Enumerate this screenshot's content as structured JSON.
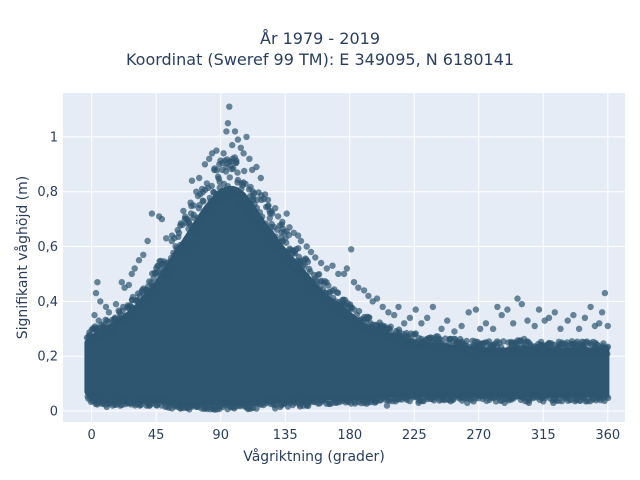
{
  "chart_data": {
    "type": "scatter",
    "title_lines": [
      "År 1979 - 2019",
      "Koordinat (Sweref 99 TM): E 349095, N 6180141"
    ],
    "xlabel": "Vågriktning (grader)",
    "ylabel": "Signifikant våghöjd (m)",
    "xlim": [
      -20,
      372
    ],
    "ylim": [
      -0.04,
      1.16
    ],
    "xticks": [
      0,
      45,
      90,
      135,
      180,
      225,
      270,
      315,
      360
    ],
    "xtick_labels": [
      "0",
      "45",
      "90",
      "135",
      "180",
      "225",
      "270",
      "315",
      "360"
    ],
    "yticks": [
      0,
      0.2,
      0.4,
      0.6,
      0.8,
      1
    ],
    "ytick_labels": [
      "0",
      "0,2",
      "0,4",
      "0,6",
      "0,8",
      "1"
    ],
    "grid": true,
    "background": "#e5ecf6",
    "marker_color": "#2e5670",
    "marker_opacity": 0.7,
    "density_envelope": {
      "direction": [
        -3,
        0,
        5,
        10,
        15,
        20,
        25,
        30,
        35,
        40,
        45,
        50,
        55,
        60,
        65,
        70,
        75,
        80,
        85,
        90,
        95,
        100,
        105,
        110,
        115,
        120,
        125,
        130,
        135,
        140,
        145,
        150,
        155,
        160,
        165,
        170,
        175,
        180,
        185,
        190,
        195,
        200,
        205,
        210,
        215,
        220,
        225,
        230,
        240,
        250,
        260,
        270,
        280,
        290,
        300,
        310,
        320,
        330,
        340,
        350,
        360
      ],
      "dense_top": [
        0.25,
        0.27,
        0.28,
        0.3,
        0.31,
        0.33,
        0.35,
        0.37,
        0.4,
        0.43,
        0.46,
        0.5,
        0.54,
        0.58,
        0.62,
        0.66,
        0.7,
        0.74,
        0.77,
        0.8,
        0.81,
        0.81,
        0.79,
        0.76,
        0.72,
        0.68,
        0.65,
        0.61,
        0.58,
        0.55,
        0.52,
        0.49,
        0.46,
        0.43,
        0.41,
        0.39,
        0.37,
        0.35,
        0.33,
        0.31,
        0.3,
        0.29,
        0.28,
        0.27,
        0.26,
        0.25,
        0.25,
        0.24,
        0.24,
        0.23,
        0.23,
        0.22,
        0.22,
        0.22,
        0.23,
        0.22,
        0.22,
        0.22,
        0.22,
        0.22,
        0.22
      ],
      "dense_bottom": [
        0.07,
        0.05,
        0.04,
        0.04,
        0.04,
        0.04,
        0.04,
        0.04,
        0.04,
        0.04,
        0.04,
        0.04,
        0.03,
        0.03,
        0.03,
        0.03,
        0.03,
        0.03,
        0.03,
        0.03,
        0.03,
        0.03,
        0.03,
        0.03,
        0.03,
        0.04,
        0.04,
        0.04,
        0.04,
        0.04,
        0.04,
        0.04,
        0.05,
        0.05,
        0.05,
        0.05,
        0.05,
        0.05,
        0.05,
        0.05,
        0.05,
        0.06,
        0.06,
        0.06,
        0.06,
        0.06,
        0.06,
        0.06,
        0.06,
        0.06,
        0.06,
        0.06,
        0.06,
        0.06,
        0.06,
        0.06,
        0.06,
        0.06,
        0.06,
        0.06,
        0.06
      ]
    },
    "outlier_points": [
      [
        4,
        0.47
      ],
      [
        3,
        0.43
      ],
      [
        6,
        0.4
      ],
      [
        2,
        0.35
      ],
      [
        5,
        0.33
      ],
      [
        10,
        0.38
      ],
      [
        12,
        0.36
      ],
      [
        17,
        0.39
      ],
      [
        21,
        0.47
      ],
      [
        23,
        0.45
      ],
      [
        26,
        0.46
      ],
      [
        28,
        0.5
      ],
      [
        30,
        0.52
      ],
      [
        33,
        0.55
      ],
      [
        36,
        0.57
      ],
      [
        39,
        0.62
      ],
      [
        42,
        0.72
      ],
      [
        47,
        0.71
      ],
      [
        49,
        0.7
      ],
      [
        52,
        0.63
      ],
      [
        56,
        0.64
      ],
      [
        60,
        0.66
      ],
      [
        64,
        0.73
      ],
      [
        66,
        0.7
      ],
      [
        69,
        0.76
      ],
      [
        70,
        0.84
      ],
      [
        73,
        0.8
      ],
      [
        75,
        0.85
      ],
      [
        77,
        0.81
      ],
      [
        79,
        0.9
      ],
      [
        82,
        0.92
      ],
      [
        84,
        0.94
      ],
      [
        87,
        0.95
      ],
      [
        89,
        0.9
      ],
      [
        92,
        0.94
      ],
      [
        94,
        1.02
      ],
      [
        95,
        1.05
      ],
      [
        96,
        1.11
      ],
      [
        98,
        0.97
      ],
      [
        100,
        1.02
      ],
      [
        102,
        0.99
      ],
      [
        104,
        0.96
      ],
      [
        106,
        0.94
      ],
      [
        108,
        1.0
      ],
      [
        110,
        0.92
      ],
      [
        112,
        0.88
      ],
      [
        115,
        0.89
      ],
      [
        118,
        0.85
      ],
      [
        121,
        0.79
      ],
      [
        123,
        0.77
      ],
      [
        126,
        0.72
      ],
      [
        128,
        0.74
      ],
      [
        130,
        0.71
      ],
      [
        133,
        0.69
      ],
      [
        136,
        0.72
      ],
      [
        138,
        0.67
      ],
      [
        141,
        0.65
      ],
      [
        144,
        0.64
      ],
      [
        146,
        0.62
      ],
      [
        150,
        0.6
      ],
      [
        153,
        0.58
      ],
      [
        156,
        0.56
      ],
      [
        160,
        0.54
      ],
      [
        164,
        0.52
      ],
      [
        168,
        0.53
      ],
      [
        172,
        0.5
      ],
      [
        176,
        0.5
      ],
      [
        178,
        0.52
      ],
      [
        181,
        0.59
      ],
      [
        183,
        0.47
      ],
      [
        186,
        0.45
      ],
      [
        190,
        0.44
      ],
      [
        193,
        0.42
      ],
      [
        196,
        0.4
      ],
      [
        199,
        0.41
      ],
      [
        203,
        0.38
      ],
      [
        207,
        0.36
      ],
      [
        211,
        0.35
      ],
      [
        214,
        0.38
      ],
      [
        218,
        0.32
      ],
      [
        222,
        0.34
      ],
      [
        226,
        0.37
      ],
      [
        230,
        0.32
      ],
      [
        234,
        0.34
      ],
      [
        238,
        0.38
      ],
      [
        244,
        0.3
      ],
      [
        248,
        0.33
      ],
      [
        253,
        0.29
      ],
      [
        258,
        0.31
      ],
      [
        263,
        0.36
      ],
      [
        268,
        0.37
      ],
      [
        271,
        0.3
      ],
      [
        275,
        0.32
      ],
      [
        280,
        0.3
      ],
      [
        283,
        0.38
      ],
      [
        286,
        0.35
      ],
      [
        290,
        0.37
      ],
      [
        294,
        0.32
      ],
      [
        297,
        0.41
      ],
      [
        300,
        0.39
      ],
      [
        304,
        0.33
      ],
      [
        309,
        0.31
      ],
      [
        312,
        0.37
      ],
      [
        316,
        0.33
      ],
      [
        319,
        0.34
      ],
      [
        323,
        0.36
      ],
      [
        327,
        0.3
      ],
      [
        332,
        0.33
      ],
      [
        336,
        0.35
      ],
      [
        340,
        0.3
      ],
      [
        344,
        0.34
      ],
      [
        348,
        0.38
      ],
      [
        351,
        0.31
      ],
      [
        354,
        0.32
      ],
      [
        356,
        0.36
      ],
      [
        358,
        0.43
      ],
      [
        360,
        0.31
      ],
      [
        20,
        0.02
      ],
      [
        40,
        0.02
      ],
      [
        62,
        0.01
      ],
      [
        85,
        0.01
      ],
      [
        110,
        0.01
      ],
      [
        128,
        0.01
      ],
      [
        150,
        0.02
      ],
      [
        170,
        0.03
      ],
      [
        190,
        0.03
      ],
      [
        206,
        0.02
      ],
      [
        228,
        0.03
      ],
      [
        246,
        0.04
      ],
      [
        262,
        0.03
      ],
      [
        288,
        0.03
      ],
      [
        305,
        0.03
      ],
      [
        322,
        0.03
      ],
      [
        338,
        0.04
      ],
      [
        355,
        0.04
      ]
    ]
  }
}
